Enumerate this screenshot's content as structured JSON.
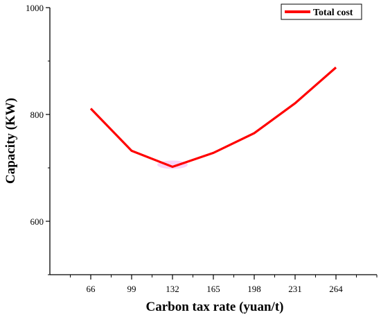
{
  "chart_data": {
    "type": "line",
    "x": [
      66,
      99,
      132,
      165,
      198,
      231,
      264
    ],
    "series": [
      {
        "name": "Total cost",
        "color": "#ff0000",
        "values": [
          811,
          732,
          702,
          728,
          765,
          821,
          888
        ]
      }
    ],
    "x_tick_labels": [
      "66",
      "99",
      "132",
      "165",
      "198",
      "231",
      "264"
    ],
    "y_ticks": [
      600,
      800,
      1000
    ],
    "y_tick_labels": [
      "600",
      "800",
      "1000"
    ],
    "xlabel": "Carbon tax rate (yuan/t)",
    "ylabel": "Capacity (KW)",
    "xlim": [
      33,
      297
    ],
    "ylim": [
      500,
      1000
    ],
    "grid": false,
    "legend_position": "top-right",
    "highlight": {
      "x": 132,
      "color": "#ee82ee"
    }
  }
}
